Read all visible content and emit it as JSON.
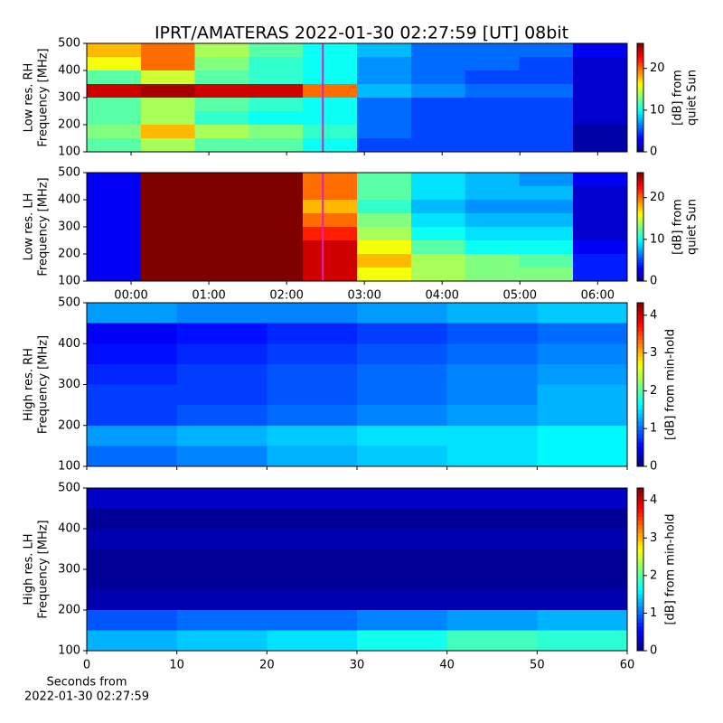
{
  "title": "IPRT/AMATERAS 2022-01-30 02:27:59 [UT]   08bit",
  "chart_data": [
    {
      "type": "heatmap",
      "colormap": "jet",
      "ylabel": [
        "Low res. RH",
        "Frequency [MHz]"
      ],
      "ylim": [
        100,
        500
      ],
      "yticks": [
        100,
        200,
        300,
        400,
        500
      ],
      "xlim": [
        -0.57,
        6.38
      ],
      "xticks": [
        0,
        1,
        2,
        3,
        4,
        5,
        6
      ],
      "xtick_labels": false,
      "vline": 2.466,
      "vline_color": "#e020c0",
      "clim": [
        0,
        26
      ],
      "cticks": [
        0,
        10,
        20
      ],
      "clabel": [
        "[dB] from",
        "quiet Sun"
      ],
      "z": [
        [
          18,
          20,
          14,
          12,
          10,
          8,
          6,
          6,
          6,
          3
        ],
        [
          16,
          20,
          13,
          11,
          10,
          7,
          6,
          6,
          5,
          2
        ],
        [
          12,
          15,
          12,
          11,
          10,
          7,
          6,
          5,
          5,
          2
        ],
        [
          24,
          25,
          24,
          24,
          20,
          8,
          7,
          6,
          6,
          2
        ],
        [
          12,
          14,
          12,
          11,
          10,
          6,
          5,
          5,
          5,
          2
        ],
        [
          12,
          14,
          11,
          10,
          10,
          6,
          5,
          5,
          5,
          2
        ],
        [
          13,
          18,
          14,
          13,
          11,
          6,
          5,
          5,
          5,
          1
        ],
        [
          12,
          14,
          12,
          12,
          10,
          5,
          5,
          5,
          5,
          1
        ]
      ]
    },
    {
      "type": "heatmap",
      "colormap": "jet",
      "ylabel": [
        "Low res. LH",
        "Frequency [MHz]"
      ],
      "ylim": [
        100,
        500
      ],
      "yticks": [
        100,
        200,
        300,
        400,
        500
      ],
      "xlim": [
        -0.57,
        6.38
      ],
      "xticks": [
        {
          "value": 0,
          "label": "00:00"
        },
        {
          "value": 1,
          "label": "01:00"
        },
        {
          "value": 2,
          "label": "02:00"
        },
        {
          "value": 3,
          "label": "03:00"
        },
        {
          "value": 4,
          "label": "04:00"
        },
        {
          "value": 5,
          "label": "05:00"
        },
        {
          "value": 6,
          "label": "06:00"
        }
      ],
      "xtick_labels": true,
      "vline": 2.466,
      "vline_color": "#e020c0",
      "clim": [
        0,
        26
      ],
      "cticks": [
        0,
        10,
        20
      ],
      "clabel": [
        "[dB] from",
        "quiet Sun"
      ],
      "z": [
        [
          3,
          26,
          26,
          26,
          20,
          12,
          9,
          8,
          7,
          3
        ],
        [
          3,
          26,
          26,
          26,
          20,
          12,
          9,
          8,
          8,
          2
        ],
        [
          3,
          26,
          26,
          26,
          18,
          11,
          8,
          7,
          7,
          2
        ],
        [
          3,
          26,
          26,
          26,
          20,
          13,
          9,
          8,
          8,
          2
        ],
        [
          3,
          26,
          26,
          26,
          22,
          14,
          10,
          9,
          9,
          2
        ],
        [
          3,
          26,
          26,
          26,
          24,
          16,
          12,
          10,
          10,
          3
        ],
        [
          3,
          26,
          26,
          26,
          24,
          18,
          14,
          13,
          12,
          4
        ],
        [
          3,
          26,
          26,
          26,
          24,
          16,
          14,
          13,
          13,
          4
        ]
      ]
    },
    {
      "type": "heatmap",
      "colormap": "jet",
      "ylabel": [
        "High res. RH",
        "Frequency [MHz]"
      ],
      "ylim": [
        100,
        500
      ],
      "yticks": [
        100,
        200,
        300,
        400,
        500
      ],
      "xlim": [
        0,
        60
      ],
      "xticks": [
        0,
        10,
        20,
        30,
        40,
        50,
        60
      ],
      "xtick_labels": false,
      "clim": [
        0,
        4.33
      ],
      "cticks": [
        0,
        1,
        2,
        3,
        4
      ],
      "clabel": [
        "[dB] from min-hold"
      ],
      "z": [
        [
          1.2,
          1.1,
          1.1,
          1.2,
          1.3,
          1.4
        ],
        [
          0.5,
          0.6,
          0.7,
          0.8,
          0.9,
          1.0
        ],
        [
          0.6,
          0.7,
          0.8,
          0.9,
          1.0,
          1.1
        ],
        [
          0.7,
          0.8,
          0.9,
          1.0,
          1.1,
          1.2
        ],
        [
          0.8,
          0.8,
          0.9,
          1.0,
          1.1,
          1.3
        ],
        [
          0.8,
          0.9,
          1.0,
          1.1,
          1.2,
          1.3
        ],
        [
          1.2,
          1.3,
          1.4,
          1.5,
          1.5,
          1.6
        ],
        [
          1.0,
          1.1,
          1.3,
          1.4,
          1.5,
          1.6
        ]
      ]
    },
    {
      "type": "heatmap",
      "colormap": "jet",
      "ylabel": [
        "High res. LH",
        "Frequency [MHz]"
      ],
      "ylim": [
        100,
        500
      ],
      "yticks": [
        100,
        200,
        300,
        400,
        500
      ],
      "xlim": [
        0,
        60
      ],
      "xticks": [
        0,
        10,
        20,
        30,
        40,
        50,
        60
      ],
      "xtick_labels": true,
      "xlabel": [
        "Seconds from",
        "2022-01-30 02:27:59"
      ],
      "clim": [
        0,
        4.33
      ],
      "cticks": [
        0,
        1,
        2,
        3,
        4
      ],
      "clabel": [
        "[dB] from min-hold"
      ],
      "z": [
        [
          0.3,
          0.3,
          0.3,
          0.3,
          0.3,
          0.3
        ],
        [
          0.1,
          0.1,
          0.1,
          0.1,
          0.1,
          0.1
        ],
        [
          0.2,
          0.2,
          0.2,
          0.2,
          0.2,
          0.2
        ],
        [
          0.1,
          0.1,
          0.1,
          0.1,
          0.1,
          0.1
        ],
        [
          0.1,
          0.1,
          0.1,
          0.1,
          0.1,
          0.1
        ],
        [
          0.2,
          0.2,
          0.2,
          0.2,
          0.2,
          0.2
        ],
        [
          0.9,
          1.0,
          1.0,
          1.1,
          1.2,
          1.3
        ],
        [
          1.3,
          1.4,
          1.5,
          1.7,
          1.9,
          1.8
        ]
      ]
    }
  ]
}
